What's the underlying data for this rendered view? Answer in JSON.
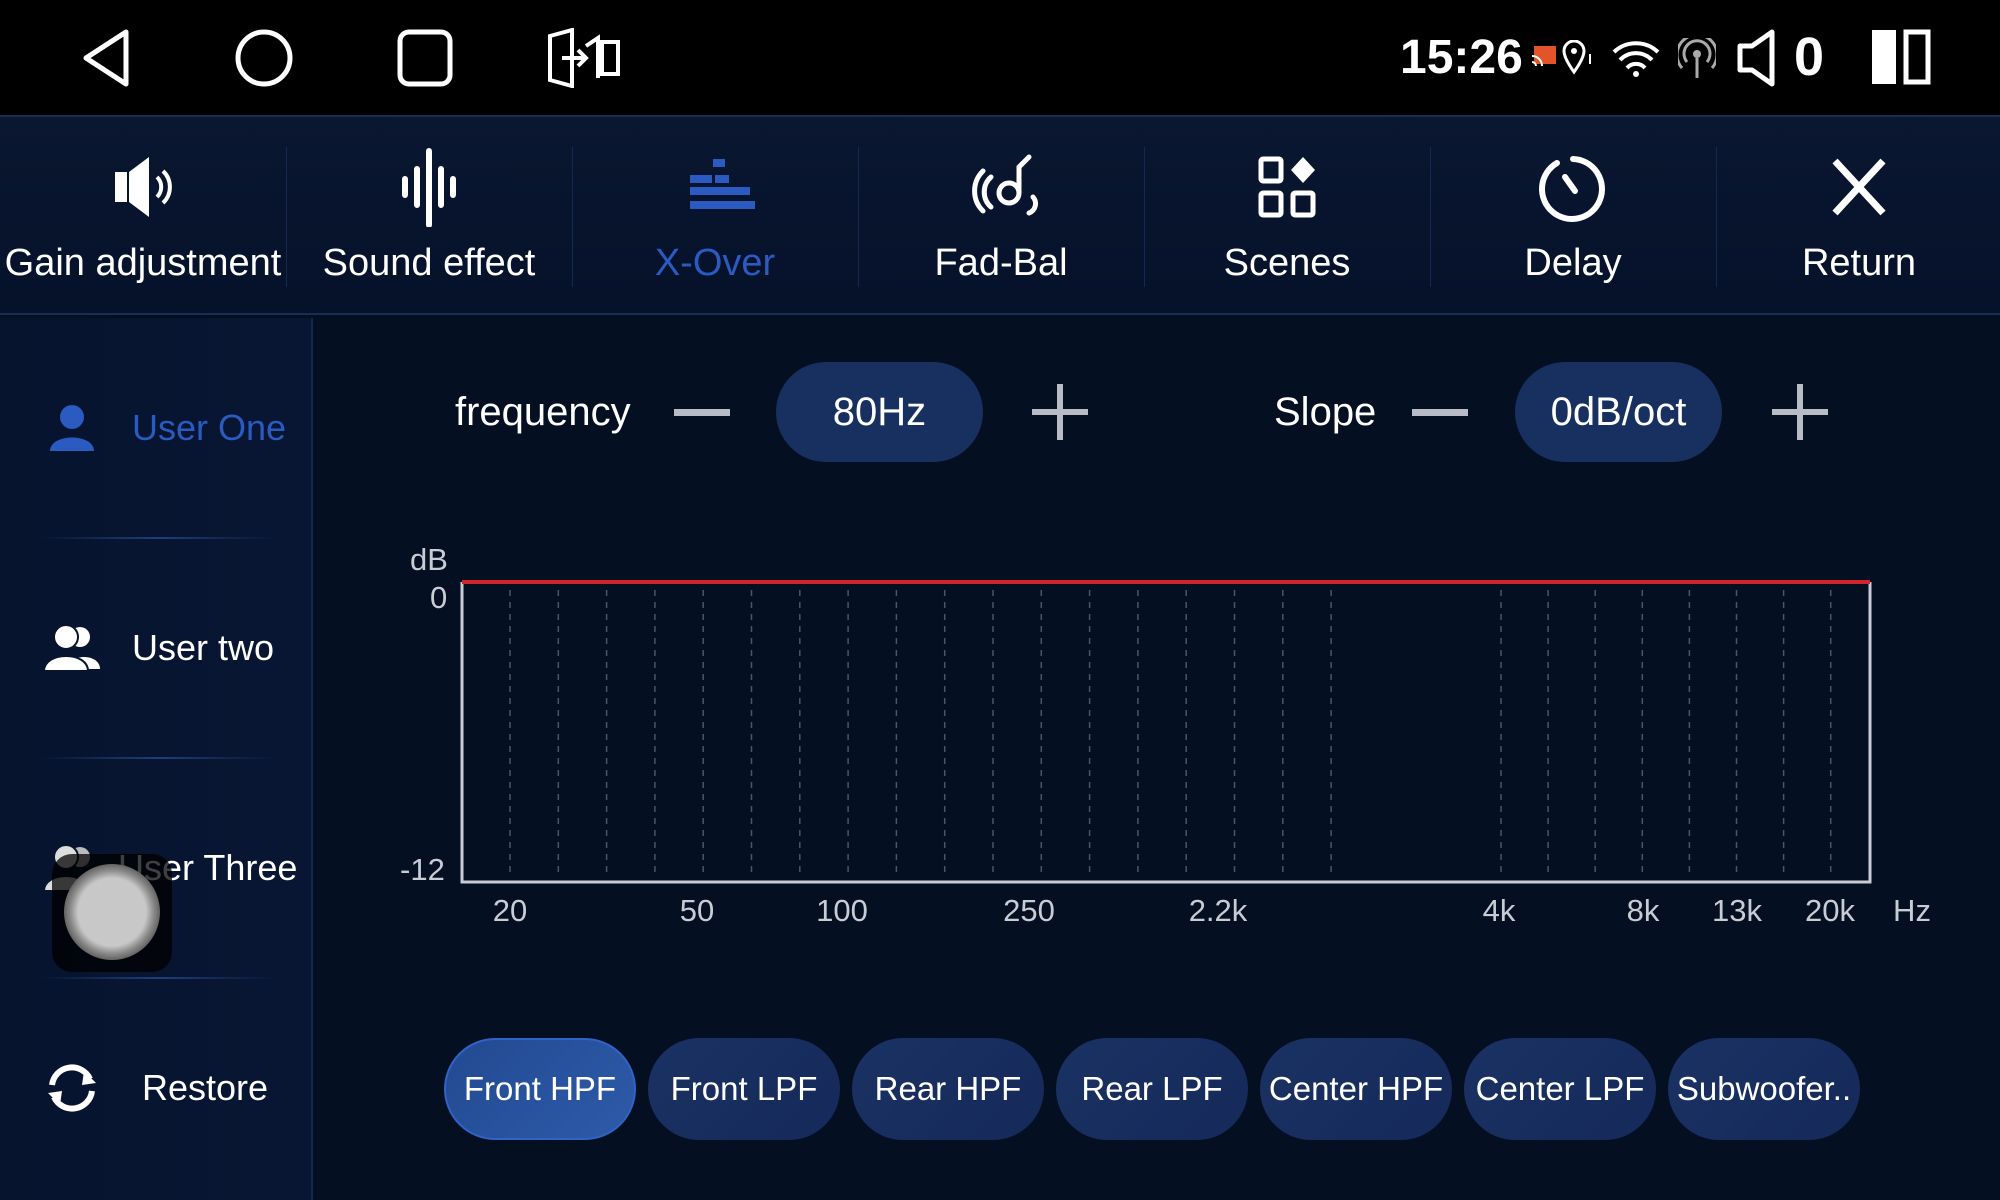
{
  "status_bar": {
    "time": "15:26",
    "volume_level": "0",
    "icons": [
      "back-icon",
      "home-icon",
      "recents-icon",
      "screen-mirror-icon",
      "cast-icon",
      "location-icon",
      "wifi-icon",
      "hotspot-icon",
      "volume-icon",
      "split-screen-icon"
    ]
  },
  "nav": {
    "items": [
      {
        "label": "Gain adjustment",
        "icon": "speaker-icon"
      },
      {
        "label": "Sound effect",
        "icon": "waveform-icon"
      },
      {
        "label": "X-Over",
        "icon": "crossover-bars-icon",
        "active": true
      },
      {
        "label": "Fad-Bal",
        "icon": "fader-balance-icon"
      },
      {
        "label": "Scenes",
        "icon": "scenes-grid-icon"
      },
      {
        "label": "Delay",
        "icon": "timer-icon"
      },
      {
        "label": "Return",
        "icon": "close-icon"
      }
    ]
  },
  "sidebar": {
    "items": [
      {
        "label": "User One",
        "active": true
      },
      {
        "label": "User two"
      },
      {
        "label": "User Three"
      },
      {
        "label": "Restore"
      }
    ]
  },
  "controls": {
    "frequency_label": "frequency",
    "frequency_value": "80Hz",
    "slope_label": "Slope",
    "slope_value": "0dB/oct"
  },
  "colors": {
    "accent": "#2b5bc0",
    "background": "#050f22",
    "pill": "#17305f",
    "curve": "#d0262b"
  },
  "chart_data": {
    "type": "line",
    "ylabel": "dB",
    "xlabel": "Hz",
    "y_ticks": [
      "0",
      "-12"
    ],
    "ylim": [
      -12,
      0
    ],
    "x_ticks": [
      "20",
      "50",
      "100",
      "250",
      "2.2k",
      "4k",
      "8k",
      "13k",
      "20k"
    ],
    "series": [
      {
        "values": [
          0,
          0,
          0,
          0,
          0,
          0,
          0,
          0,
          0
        ]
      }
    ],
    "grid": "vertical dashed"
  },
  "filters": {
    "items": [
      "Front HPF",
      "Front LPF",
      "Rear HPF",
      "Rear LPF",
      "Center HPF",
      "Center LPF",
      "Subwoofer.."
    ],
    "active_index": 0
  }
}
